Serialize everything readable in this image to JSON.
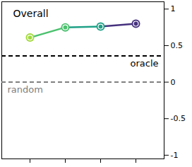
{
  "chart_data": {
    "type": "line",
    "title": "Overall",
    "categories": [
      null,
      null,
      null,
      null
    ],
    "values": [
      0.61,
      0.75,
      0.76,
      0.8
    ],
    "colors": [
      "#a0da39",
      "#4ac16d",
      "#1fa187",
      "#46327e"
    ],
    "marker": "circle",
    "ylim": [
      -1.05,
      1.1
    ],
    "yticks": [
      -1,
      -0.5,
      0,
      0.5,
      1
    ],
    "reference_lines": [
      {
        "value": 0.36,
        "label": "oracle",
        "color": "#000000",
        "line_style": "dashed"
      },
      {
        "value": 0,
        "label": "random",
        "color": "#808080",
        "line_style": "dashed"
      }
    ]
  }
}
